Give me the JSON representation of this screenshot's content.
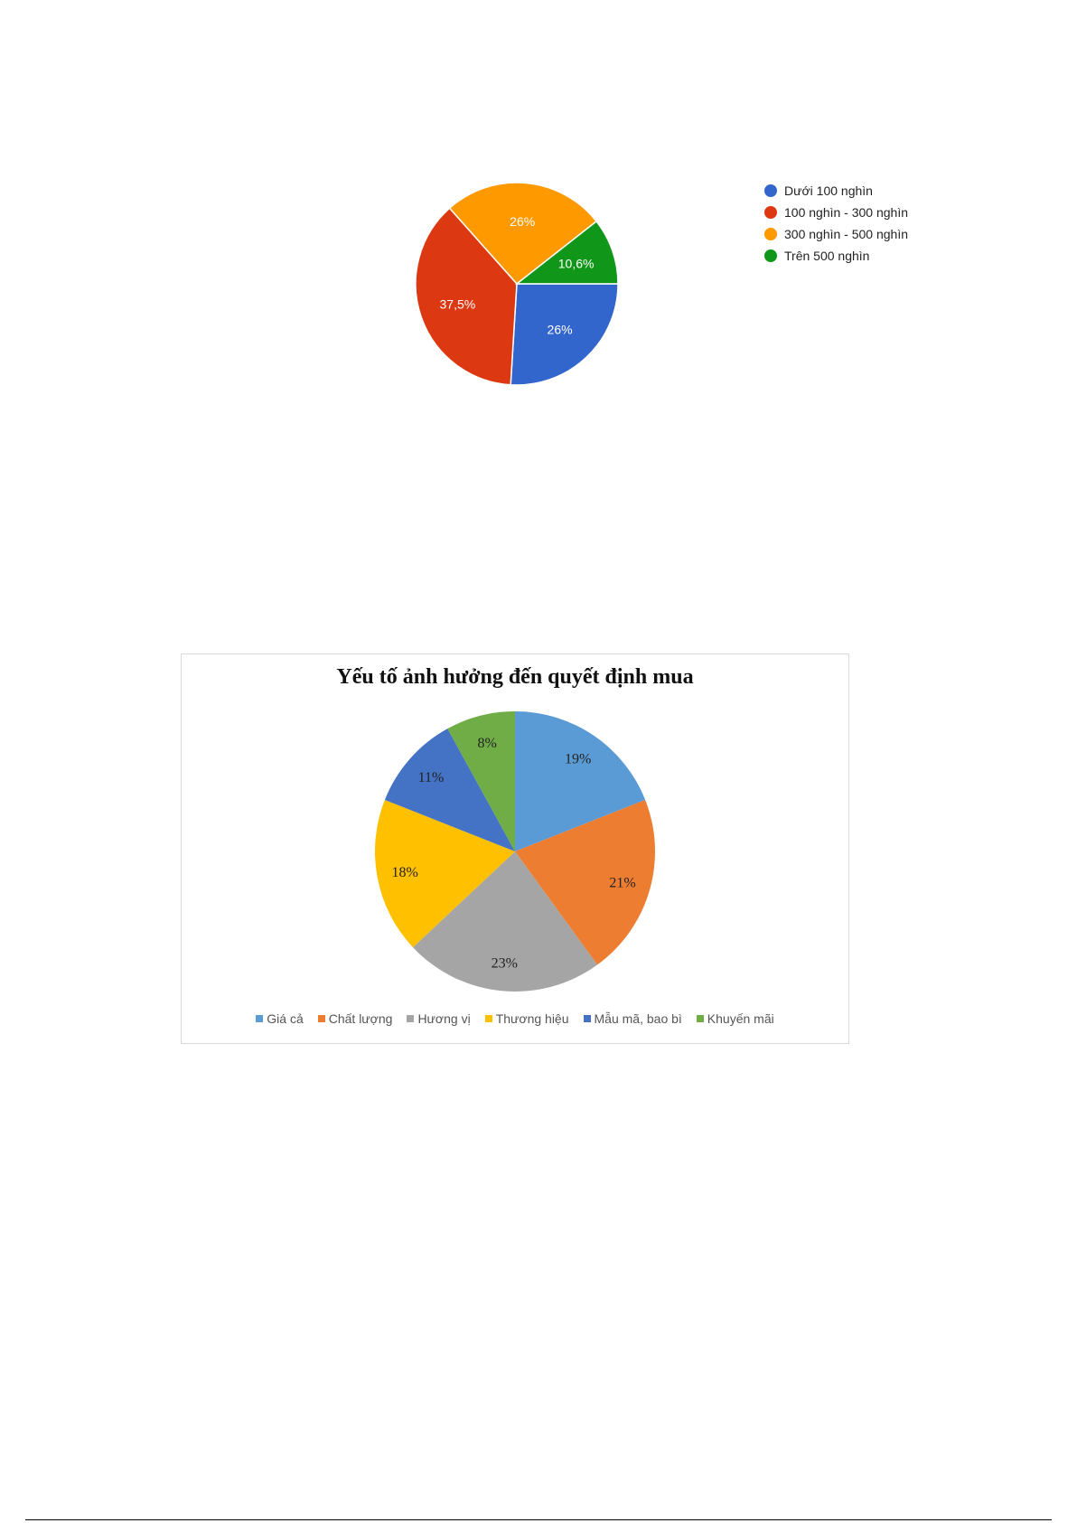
{
  "chart_data": [
    {
      "type": "pie",
      "title": "",
      "categories": [
        "Dưới 100 nghìn",
        "100 nghìn - 300 nghìn",
        "300 nghìn - 500 nghìn",
        "Trên 500 nghìn"
      ],
      "values": [
        26,
        37.5,
        26,
        10.6
      ],
      "labels": [
        "26%",
        "37,5%",
        "26%",
        "10,6%"
      ],
      "colors": [
        "#3366cc",
        "#dc3912",
        "#ff9900",
        "#109618"
      ],
      "legend_position": "right"
    },
    {
      "type": "pie",
      "title": "Yếu tố ảnh hưởng đến quyết định mua",
      "categories": [
        "Giá cả",
        "Chất lượng",
        "Hương vị",
        "Thương hiệu",
        "Mẫu mã, bao bì",
        "Khuyến mãi"
      ],
      "values": [
        19,
        21,
        23,
        18,
        11,
        8
      ],
      "labels": [
        "19%",
        "21%",
        "23%",
        "18%",
        "11%",
        "8%"
      ],
      "colors": [
        "#5b9bd5",
        "#ed7d31",
        "#a5a5a5",
        "#ffc000",
        "#4472c4",
        "#70ad47"
      ],
      "legend_position": "bottom"
    }
  ]
}
